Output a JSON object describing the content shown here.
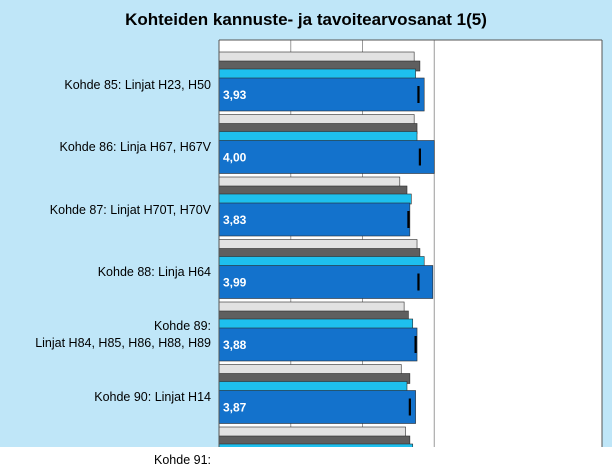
{
  "title": "Kohteiden kannuste- ja tavoitearvosanat 1(5)",
  "chart_data": {
    "type": "bar",
    "orientation": "horizontal",
    "title": "Kohteiden kannuste- ja tavoitearvosanat 1(5)",
    "categories": [
      [
        "Kohde 85: Linjat H23, H50"
      ],
      [
        "Kohde 86: Linja H67, H67V"
      ],
      [
        "Kohde 87: Linjat H70T, H70V"
      ],
      [
        "Kohde 88: Linja H64"
      ],
      [
        "Kohde 89:",
        "Linjat H84, H85, H86, H88, H89"
      ],
      [
        "Kohde 90: Linjat H14"
      ],
      [
        "Kohde 91:"
      ]
    ],
    "series": [
      {
        "values": [
          3.86,
          3.86,
          3.76,
          3.88,
          3.79,
          3.77,
          3.8
        ],
        "color": "#e2e2e2"
      },
      {
        "values": [
          3.9,
          3.88,
          3.81,
          3.9,
          3.82,
          3.83,
          3.83
        ],
        "color": "#5f5f5f"
      },
      {
        "values": [
          3.87,
          3.88,
          3.84,
          3.93,
          3.85,
          3.81,
          3.85
        ],
        "color": "#1ec0ee"
      },
      {
        "values": [
          3.93,
          4.0,
          3.83,
          3.99,
          3.88,
          3.87,
          null
        ],
        "color": "#1372cc"
      }
    ],
    "data_labels": [
      "3,93",
      "4,00",
      "3,83",
      "3,99",
      "3,88",
      "3,87",
      ""
    ],
    "targets": [
      3.89,
      3.9,
      3.82,
      3.89,
      3.87,
      3.83,
      null
    ],
    "xlim": [
      2.5,
      4.2
    ],
    "gridlines": [
      3.0,
      3.5,
      4.0
    ],
    "grid": true
  }
}
